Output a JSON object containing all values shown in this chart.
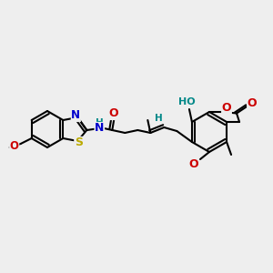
{
  "bg_color": "#eeeeee",
  "bond_color": "#000000",
  "bond_width": 1.5,
  "atom_colors": {
    "N": "#0000cc",
    "O": "#cc0000",
    "S": "#bbaa00",
    "H": "#008888",
    "C": "#000000"
  },
  "font_size": 8.5
}
